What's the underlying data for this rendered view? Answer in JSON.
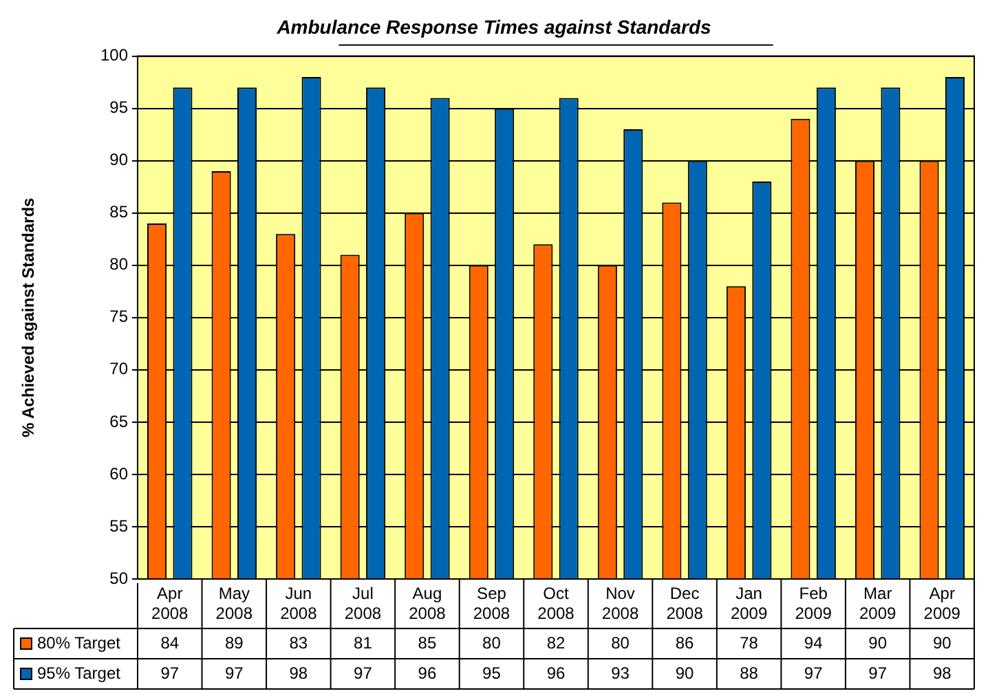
{
  "chart_data": {
    "type": "bar",
    "title": "Ambulance Response Times against Standards",
    "ylabel": "% Achieved against Standards",
    "categories": [
      "Apr 2008",
      "May 2008",
      "Jun 2008",
      "Jul 2008",
      "Aug 2008",
      "Sep 2008",
      "Oct 2008",
      "Nov 2008",
      "Dec 2008",
      "Jan 2009",
      "Feb 2009",
      "Mar 2009",
      "Apr 2009"
    ],
    "series": [
      {
        "name": "80% Target",
        "color": "#ff6600",
        "values": [
          84,
          89,
          83,
          81,
          85,
          80,
          82,
          80,
          86,
          78,
          94,
          90,
          90
        ]
      },
      {
        "name": "95% Target",
        "color": "#0066b3",
        "values": [
          97,
          97,
          98,
          97,
          96,
          95,
          96,
          93,
          90,
          88,
          97,
          97,
          98
        ]
      }
    ],
    "ylim": [
      50,
      100
    ],
    "yticks": [
      50,
      55,
      60,
      65,
      70,
      75,
      80,
      85,
      90,
      95,
      100
    ],
    "grid": "y",
    "legend": "bottom",
    "data_labels": true
  }
}
